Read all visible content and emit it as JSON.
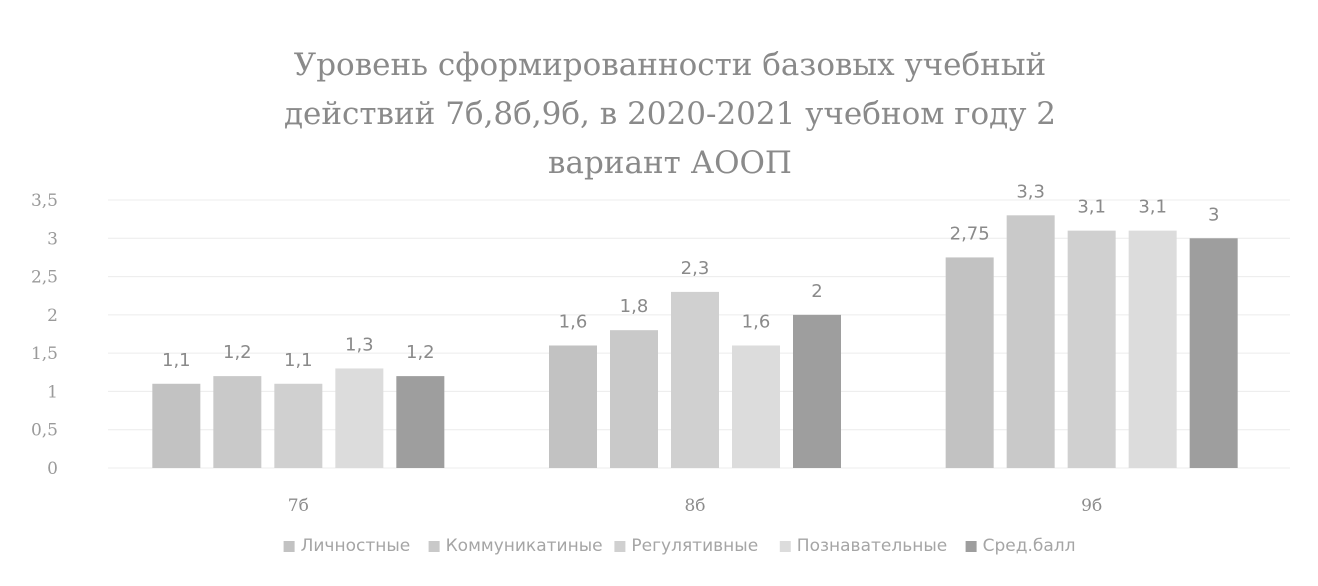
{
  "chart_data": {
    "type": "bar",
    "title_lines": [
      "Уровень сформированности базовых учебный",
      "действий 7б,8б,9б, в 2020-2021 учебном году 2",
      "вариант АООП"
    ],
    "categories": [
      "7б",
      "8б",
      "9б"
    ],
    "ylim": [
      0,
      3.5
    ],
    "yticks": [
      "0",
      "0,5",
      "1",
      "1,5",
      "2",
      "2,5",
      "3",
      "3,5"
    ],
    "grid": true,
    "legend_position": "bottom",
    "series": [
      {
        "name": "Личностные",
        "values": [
          1.1,
          1.6,
          2.75
        ],
        "labels": [
          "1,1",
          "1,6",
          "2,75"
        ],
        "color": "#c2c2c2"
      },
      {
        "name": "Коммуникатиные",
        "values": [
          1.2,
          1.8,
          3.3
        ],
        "labels": [
          "1,2",
          "1,8",
          "3,3"
        ],
        "color": "#c9c9c9"
      },
      {
        "name": "Регулятивные",
        "values": [
          1.1,
          2.3,
          3.1
        ],
        "labels": [
          "1,1",
          "2,3",
          "3,1"
        ],
        "color": "#d0d0d0"
      },
      {
        "name": "Познавательные",
        "values": [
          1.3,
          1.6,
          3.1
        ],
        "labels": [
          "1,3",
          "1,6",
          "3,1"
        ],
        "color": "#dcdcdc"
      },
      {
        "name": "Сред.балл",
        "values": [
          1.2,
          2,
          3
        ],
        "labels": [
          "1,2",
          "2",
          "3"
        ],
        "color": "#9e9e9e"
      }
    ]
  }
}
